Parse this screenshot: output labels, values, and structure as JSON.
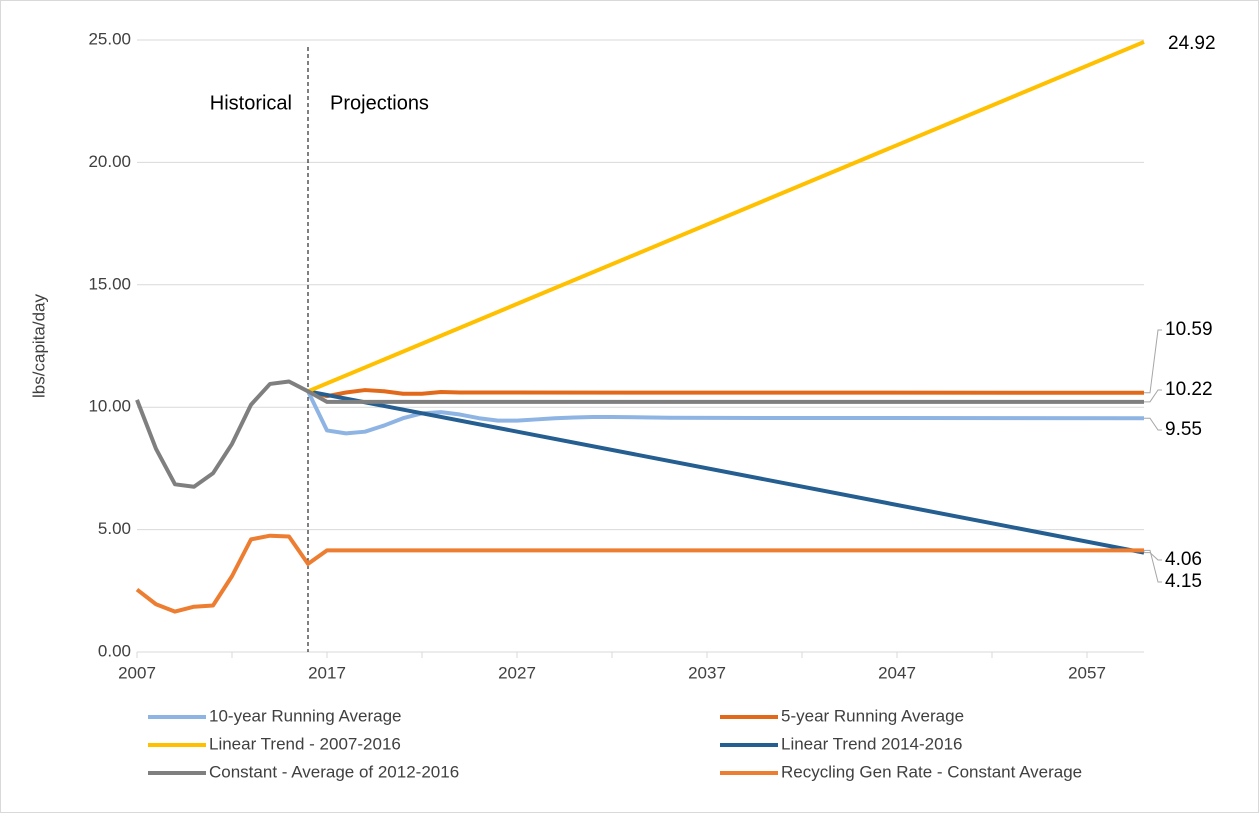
{
  "chart_data": {
    "type": "line",
    "ylabel": "lbs/capita/day",
    "xlim": [
      2007,
      2060
    ],
    "xticks": [
      2007,
      2017,
      2027,
      2037,
      2047,
      2057
    ],
    "xminorticks": [
      2012,
      2022,
      2032,
      2042,
      2052
    ],
    "ylim": [
      0,
      25
    ],
    "yticks": [
      {
        "value": 0,
        "label": "0.00"
      },
      {
        "value": 5,
        "label": "5.00"
      },
      {
        "value": 10,
        "label": "10.00"
      },
      {
        "value": 15,
        "label": "15.00"
      },
      {
        "value": 20,
        "label": "20.00"
      },
      {
        "value": 25,
        "label": "25.00"
      }
    ],
    "grid": true,
    "divider_x": 2016,
    "annotations": [
      "Historical",
      "Projections"
    ],
    "series": [
      {
        "name": "10-year Running Average",
        "color": "#8eb4e3",
        "x": [
          2016,
          2017,
          2018,
          2019,
          2020,
          2021,
          2022,
          2023,
          2024,
          2025,
          2026,
          2027,
          2028,
          2029,
          2030,
          2031,
          2032,
          2035,
          2040,
          2060
        ],
        "values": [
          10.65,
          9.05,
          8.93,
          9.0,
          9.25,
          9.55,
          9.75,
          9.8,
          9.7,
          9.55,
          9.45,
          9.45,
          9.5,
          9.55,
          9.58,
          9.6,
          9.6,
          9.57,
          9.56,
          9.55
        ]
      },
      {
        "name": "5-year Running Average",
        "color": "#e2691a",
        "x": [
          2016,
          2017,
          2018,
          2019,
          2020,
          2021,
          2022,
          2023,
          2024,
          2025,
          2060
        ],
        "values": [
          10.65,
          10.45,
          10.6,
          10.7,
          10.65,
          10.55,
          10.55,
          10.62,
          10.6,
          10.6,
          10.59
        ]
      },
      {
        "name": "Linear Trend - 2007-2016",
        "color": "#ffc000",
        "x": [
          2016,
          2060
        ],
        "values": [
          10.65,
          24.92
        ]
      },
      {
        "name": "Linear Trend 2014-2016",
        "color": "#255e91",
        "x": [
          2016,
          2060
        ],
        "values": [
          10.65,
          4.06
        ]
      },
      {
        "name": "Constant - Average of 2012-2016",
        "color": "#7f7f7f",
        "x": [
          2007,
          2008,
          2009,
          2010,
          2011,
          2012,
          2013,
          2014,
          2015,
          2016,
          2017,
          2060
        ],
        "values": [
          10.3,
          8.3,
          6.85,
          6.75,
          7.3,
          8.5,
          10.1,
          10.95,
          11.05,
          10.65,
          10.22,
          10.22
        ]
      },
      {
        "name": "Recycling Gen Rate - Constant Average",
        "color": "#ed7d31",
        "x": [
          2007,
          2008,
          2009,
          2010,
          2011,
          2012,
          2013,
          2014,
          2015,
          2016,
          2017,
          2060
        ],
        "values": [
          2.55,
          1.95,
          1.65,
          1.85,
          1.9,
          3.1,
          4.6,
          4.75,
          4.72,
          3.6,
          4.15,
          4.15
        ]
      }
    ]
  }
}
